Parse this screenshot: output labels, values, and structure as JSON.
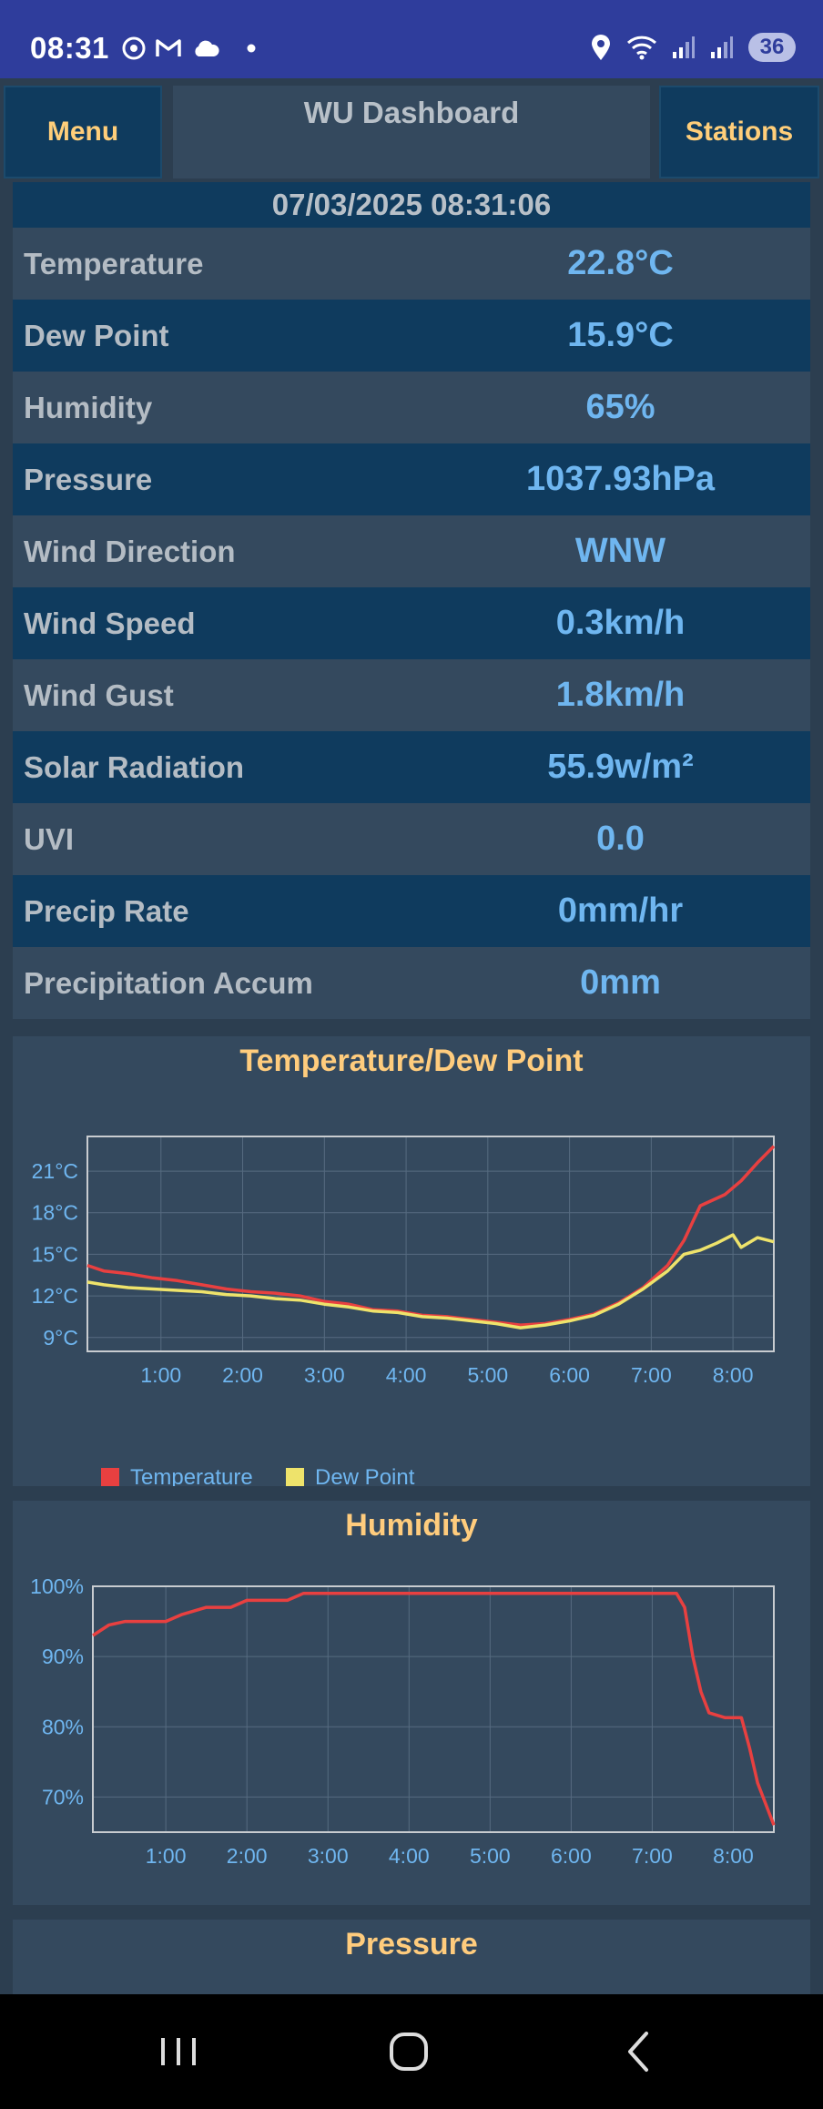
{
  "status_bar": {
    "time": "08:31",
    "battery": "36",
    "icons_left": [
      "chrome-icon",
      "gmail-icon",
      "cloud-icon",
      "dot-icon"
    ],
    "icons_right": [
      "location-icon",
      "wifi-icon",
      "signal-icon",
      "signal-icon"
    ]
  },
  "header": {
    "menu_label": "Menu",
    "title": "WU Dashboard",
    "stations_label": "Stations"
  },
  "datetime": "07/03/2025 08:31:06",
  "readings": [
    {
      "label": "Temperature",
      "value": "22.8°C"
    },
    {
      "label": "Dew Point",
      "value": "15.9°C"
    },
    {
      "label": "Humidity",
      "value": "65%"
    },
    {
      "label": "Pressure",
      "value": "1037.93hPa"
    },
    {
      "label": "Wind Direction",
      "value": "WNW"
    },
    {
      "label": "Wind Speed",
      "value": "0.3km/h"
    },
    {
      "label": "Wind Gust",
      "value": "1.8km/h"
    },
    {
      "label": "Solar Radiation",
      "value": "55.9w/m²"
    },
    {
      "label": "UVI",
      "value": "0.0"
    },
    {
      "label": "Precip Rate",
      "value": "0mm/hr"
    },
    {
      "label": "Precipitation Accum",
      "value": "0mm"
    }
  ],
  "colors": {
    "accent_title": "#ffcc7d",
    "value_blue": "#6fb6f0",
    "temperature_line": "#e84040",
    "dewpoint_line": "#eee36b",
    "humidity_line": "#e84040"
  },
  "chart_data": [
    {
      "type": "line",
      "title": "Temperature/Dew Point",
      "x_ticks": [
        "1:00",
        "2:00",
        "3:00",
        "4:00",
        "5:00",
        "6:00",
        "7:00",
        "8:00"
      ],
      "y_ticks": [
        "9°C",
        "12°C",
        "15°C",
        "18°C",
        "21°C"
      ],
      "xlim": [
        0.1,
        8.5
      ],
      "ylim": [
        8,
        23.5
      ],
      "grid": true,
      "legend_position": "bottom-left",
      "series": [
        {
          "name": "Temperature",
          "color": "#e84040",
          "points": [
            [
              0.1,
              14.2
            ],
            [
              0.3,
              13.8
            ],
            [
              0.6,
              13.6
            ],
            [
              0.9,
              13.3
            ],
            [
              1.2,
              13.1
            ],
            [
              1.5,
              12.8
            ],
            [
              1.8,
              12.5
            ],
            [
              2.1,
              12.3
            ],
            [
              2.4,
              12.2
            ],
            [
              2.7,
              12.0
            ],
            [
              3.0,
              11.6
            ],
            [
              3.3,
              11.4
            ],
            [
              3.6,
              11.0
            ],
            [
              3.9,
              10.9
            ],
            [
              4.2,
              10.6
            ],
            [
              4.5,
              10.5
            ],
            [
              4.8,
              10.3
            ],
            [
              5.1,
              10.1
            ],
            [
              5.4,
              9.9
            ],
            [
              5.7,
              10.0
            ],
            [
              6.0,
              10.3
            ],
            [
              6.3,
              10.7
            ],
            [
              6.6,
              11.5
            ],
            [
              6.9,
              12.6
            ],
            [
              7.2,
              14.2
            ],
            [
              7.4,
              16.0
            ],
            [
              7.6,
              18.5
            ],
            [
              7.9,
              19.3
            ],
            [
              8.1,
              20.3
            ],
            [
              8.3,
              21.6
            ],
            [
              8.5,
              22.8
            ]
          ]
        },
        {
          "name": "Dew Point",
          "color": "#eee36b",
          "points": [
            [
              0.1,
              13.0
            ],
            [
              0.3,
              12.8
            ],
            [
              0.6,
              12.6
            ],
            [
              0.9,
              12.5
            ],
            [
              1.2,
              12.4
            ],
            [
              1.5,
              12.3
            ],
            [
              1.8,
              12.1
            ],
            [
              2.1,
              12.0
            ],
            [
              2.4,
              11.8
            ],
            [
              2.7,
              11.7
            ],
            [
              3.0,
              11.4
            ],
            [
              3.3,
              11.2
            ],
            [
              3.6,
              10.9
            ],
            [
              3.9,
              10.8
            ],
            [
              4.2,
              10.5
            ],
            [
              4.5,
              10.4
            ],
            [
              4.8,
              10.2
            ],
            [
              5.1,
              10.0
            ],
            [
              5.4,
              9.7
            ],
            [
              5.7,
              9.9
            ],
            [
              6.0,
              10.2
            ],
            [
              6.3,
              10.6
            ],
            [
              6.6,
              11.4
            ],
            [
              6.9,
              12.5
            ],
            [
              7.2,
              13.8
            ],
            [
              7.4,
              15.0
            ],
            [
              7.6,
              15.3
            ],
            [
              7.8,
              15.8
            ],
            [
              8.0,
              16.4
            ],
            [
              8.1,
              15.5
            ],
            [
              8.3,
              16.2
            ],
            [
              8.5,
              15.9
            ]
          ]
        }
      ]
    },
    {
      "type": "line",
      "title": "Humidity",
      "x_ticks": [
        "1:00",
        "2:00",
        "3:00",
        "4:00",
        "5:00",
        "6:00",
        "7:00",
        "8:00"
      ],
      "y_ticks": [
        "70%",
        "80%",
        "90%",
        "100%"
      ],
      "xlim": [
        0.1,
        8.5
      ],
      "ylim": [
        65,
        100
      ],
      "grid": true,
      "series": [
        {
          "name": "Humidity",
          "color": "#e84040",
          "points": [
            [
              0.1,
              93
            ],
            [
              0.3,
              94.5
            ],
            [
              0.5,
              95
            ],
            [
              0.8,
              95
            ],
            [
              1.0,
              95
            ],
            [
              1.2,
              96
            ],
            [
              1.5,
              97
            ],
            [
              1.8,
              97
            ],
            [
              2.0,
              98
            ],
            [
              2.3,
              98
            ],
            [
              2.5,
              98
            ],
            [
              2.7,
              99
            ],
            [
              3.0,
              99
            ],
            [
              4.0,
              99
            ],
            [
              5.0,
              99
            ],
            [
              6.0,
              99
            ],
            [
              7.0,
              99
            ],
            [
              7.3,
              99
            ],
            [
              7.4,
              97
            ],
            [
              7.5,
              90
            ],
            [
              7.6,
              85
            ],
            [
              7.7,
              82
            ],
            [
              7.9,
              81.3
            ],
            [
              8.1,
              81.3
            ],
            [
              8.2,
              77
            ],
            [
              8.3,
              72
            ],
            [
              8.4,
              69
            ],
            [
              8.5,
              66
            ]
          ]
        }
      ]
    }
  ],
  "pressure_panel": {
    "title": "Pressure"
  }
}
